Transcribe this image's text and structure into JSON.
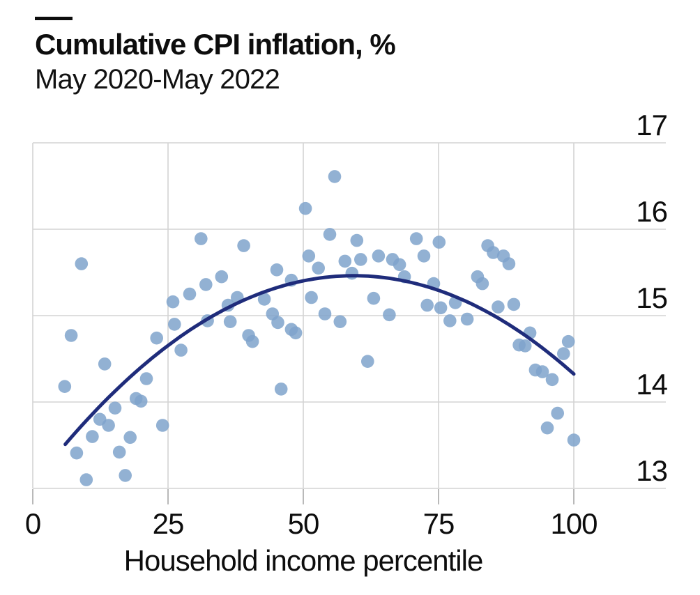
{
  "header": {
    "title": "Cumulative CPI inflation, %",
    "subtitle": "May 2020-May 2022"
  },
  "chart_data": {
    "type": "scatter",
    "title": "Cumulative CPI inflation, %",
    "subtitle": "May 2020-May 2022",
    "xlabel": "Household income percentile",
    "ylabel": "",
    "xlim": [
      0,
      100
    ],
    "ylim": [
      13,
      17
    ],
    "x_ticks": [
      0,
      25,
      50,
      75,
      100
    ],
    "y_ticks": [
      13,
      14,
      15,
      16,
      17
    ],
    "grid": true,
    "legend": "none",
    "colors": {
      "dot": "#7fa3cb",
      "dot_opacity": 0.85,
      "curve": "#1f2c7b",
      "grid": "#d4d4d4",
      "tick": "#b9b9b9",
      "text": "#0d0d0d"
    },
    "points": [
      [
        9.0,
        15.6
      ],
      [
        31.1,
        15.89
      ],
      [
        39.0,
        15.81
      ],
      [
        50.4,
        16.24
      ],
      [
        55.8,
        16.61
      ],
      [
        54.9,
        15.94
      ],
      [
        51.0,
        15.69
      ],
      [
        52.8,
        15.55
      ],
      [
        45.1,
        15.53
      ],
      [
        34.9,
        15.45
      ],
      [
        32.0,
        15.36
      ],
      [
        29.0,
        15.25
      ],
      [
        25.9,
        15.16
      ],
      [
        37.8,
        15.21
      ],
      [
        42.8,
        15.19
      ],
      [
        51.5,
        15.21
      ],
      [
        44.3,
        15.02
      ],
      [
        36.1,
        15.12
      ],
      [
        54.0,
        15.02
      ],
      [
        59.9,
        15.87
      ],
      [
        70.9,
        15.89
      ],
      [
        75.1,
        15.85
      ],
      [
        84.1,
        15.81
      ],
      [
        85.1,
        15.73
      ],
      [
        87.0,
        15.69
      ],
      [
        88.0,
        15.6
      ],
      [
        57.7,
        15.63
      ],
      [
        60.6,
        15.65
      ],
      [
        63.9,
        15.69
      ],
      [
        66.5,
        15.65
      ],
      [
        67.8,
        15.59
      ],
      [
        72.3,
        15.69
      ],
      [
        59.0,
        15.49
      ],
      [
        68.7,
        15.45
      ],
      [
        74.1,
        15.37
      ],
      [
        82.2,
        15.45
      ],
      [
        83.1,
        15.37
      ],
      [
        72.9,
        15.12
      ],
      [
        75.4,
        15.09
      ],
      [
        78.1,
        15.15
      ],
      [
        86.0,
        15.1
      ],
      [
        88.9,
        15.13
      ],
      [
        56.8,
        14.93
      ],
      [
        65.9,
        15.01
      ],
      [
        77.1,
        14.94
      ],
      [
        80.3,
        14.96
      ],
      [
        91.9,
        14.8
      ],
      [
        89.9,
        14.66
      ],
      [
        91.0,
        14.65
      ],
      [
        99.0,
        14.7
      ],
      [
        98.1,
        14.56
      ],
      [
        61.9,
        14.47
      ],
      [
        92.9,
        14.37
      ],
      [
        94.2,
        14.35
      ],
      [
        96.0,
        14.26
      ],
      [
        97.0,
        13.87
      ],
      [
        95.1,
        13.7
      ],
      [
        100.0,
        13.56
      ],
      [
        7.1,
        14.77
      ],
      [
        5.9,
        14.18
      ],
      [
        13.3,
        14.44
      ],
      [
        22.9,
        14.74
      ],
      [
        21.0,
        14.27
      ],
      [
        19.1,
        14.04
      ],
      [
        20.0,
        14.01
      ],
      [
        15.2,
        13.93
      ],
      [
        12.4,
        13.8
      ],
      [
        14.0,
        13.73
      ],
      [
        11.0,
        13.6
      ],
      [
        18.0,
        13.59
      ],
      [
        24.0,
        13.73
      ],
      [
        8.1,
        13.41
      ],
      [
        16.0,
        13.42
      ],
      [
        9.9,
        13.1
      ],
      [
        17.1,
        13.15
      ],
      [
        26.2,
        14.9
      ],
      [
        27.4,
        14.6
      ],
      [
        32.3,
        14.94
      ],
      [
        36.5,
        14.93
      ],
      [
        39.9,
        14.77
      ],
      [
        40.6,
        14.7
      ],
      [
        45.3,
        14.92
      ],
      [
        47.8,
        14.84
      ],
      [
        48.6,
        14.8
      ],
      [
        45.9,
        14.15
      ],
      [
        63.0,
        15.2
      ],
      [
        47.8,
        15.41
      ]
    ],
    "trend_curve": {
      "type": "quadratic",
      "a": -0.000687,
      "b": 0.08148,
      "c": 13.046,
      "x_start": 6,
      "x_end": 100
    }
  }
}
